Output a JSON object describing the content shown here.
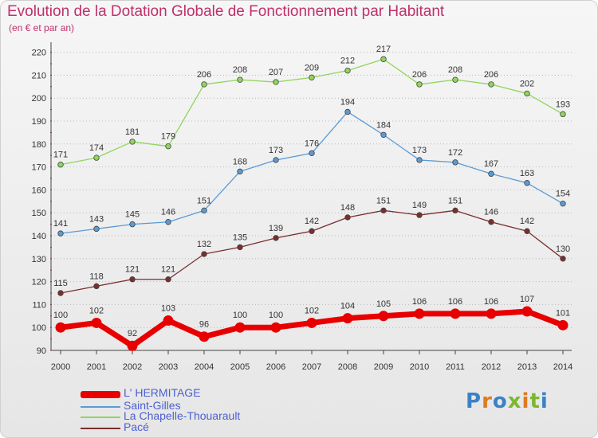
{
  "title": "Evolution de la Dotation Globale de Fonctionnement par Habitant",
  "subtitle": "(en € et par an)",
  "logo": {
    "text": "Proxiti",
    "colors": [
      "#3b82c4",
      "#e07a1f",
      "#3b82c4",
      "#7cb82f",
      "#e07a1f",
      "#7cb82f",
      "#3b82c4"
    ]
  },
  "chart_data": {
    "type": "line",
    "title": "Evolution de la Dotation Globale de Fonctionnement par Habitant",
    "subtitle": "(en € et par an)",
    "xlabel": "",
    "ylabel": "",
    "x": [
      "2000",
      "2001",
      "2002",
      "2003",
      "2004",
      "2005",
      "2006",
      "2007",
      "2008",
      "2009",
      "2010",
      "2011",
      "2012",
      "2013",
      "2014"
    ],
    "ylim": [
      90,
      220
    ],
    "yticks": [
      90,
      100,
      110,
      120,
      130,
      140,
      150,
      160,
      170,
      180,
      190,
      200,
      210,
      220
    ],
    "grid": "horizontal dotted",
    "legend_position": "bottom-left",
    "series": [
      {
        "name": "L' HERMITAGE",
        "color": "#e80000",
        "values": [
          100,
          102,
          92,
          103,
          96,
          100,
          100,
          102,
          104,
          105,
          106,
          106,
          106,
          107,
          101
        ]
      },
      {
        "name": "Saint-Gilles",
        "color": "#5b9bd5",
        "values": [
          141,
          143,
          145,
          146,
          151,
          168,
          173,
          176,
          194,
          184,
          173,
          172,
          167,
          163,
          154
        ]
      },
      {
        "name": "La Chapelle-Thouarault",
        "color": "#8fd65c",
        "values": [
          171,
          174,
          181,
          179,
          206,
          208,
          207,
          209,
          212,
          217,
          206,
          208,
          206,
          202,
          193
        ]
      },
      {
        "name": "Pacé",
        "color": "#7a2e2e",
        "values": [
          115,
          118,
          121,
          121,
          132,
          135,
          139,
          142,
          148,
          151,
          149,
          151,
          146,
          142,
          130
        ]
      }
    ]
  }
}
